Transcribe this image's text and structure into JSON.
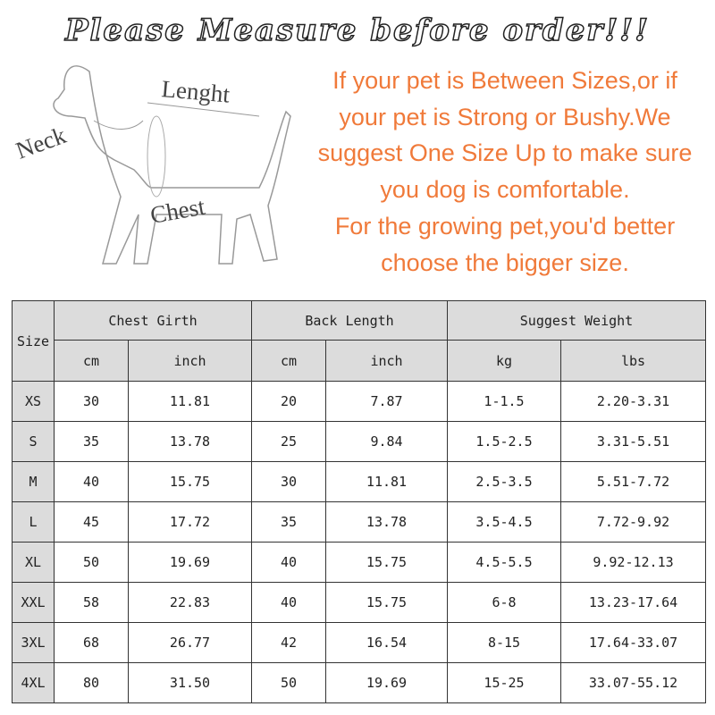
{
  "title": "Please Measure before order!!!",
  "diagram": {
    "length": "Lenght",
    "neck": "Neck",
    "chest": "Chest"
  },
  "advice": [
    "If your pet is Between Sizes,or if",
    "your pet is Strong or Bushy.We",
    "suggest One Size Up to make sure",
    "you dog is comfortable.",
    "For the growing pet,you'd better",
    "choose the bigger size."
  ],
  "colors": {
    "advice": "#f07a3a",
    "header_bg": "#dcdcdc"
  },
  "table": {
    "size_header": "Size",
    "groups": [
      "Chest Girth",
      "Back Length",
      "Suggest Weight"
    ],
    "units": [
      "cm",
      "inch",
      "cm",
      "inch",
      "kg",
      "lbs"
    ],
    "rows": [
      [
        "XS",
        "30",
        "11.81",
        "20",
        "7.87",
        "1-1.5",
        "2.20-3.31"
      ],
      [
        "S",
        "35",
        "13.78",
        "25",
        "9.84",
        "1.5-2.5",
        "3.31-5.51"
      ],
      [
        "M",
        "40",
        "15.75",
        "30",
        "11.81",
        "2.5-3.5",
        "5.51-7.72"
      ],
      [
        "L",
        "45",
        "17.72",
        "35",
        "13.78",
        "3.5-4.5",
        "7.72-9.92"
      ],
      [
        "XL",
        "50",
        "19.69",
        "40",
        "15.75",
        "4.5-5.5",
        "9.92-12.13"
      ],
      [
        "XXL",
        "58",
        "22.83",
        "40",
        "15.75",
        "6-8",
        "13.23-17.64"
      ],
      [
        "3XL",
        "68",
        "26.77",
        "42",
        "16.54",
        "8-15",
        "17.64-33.07"
      ],
      [
        "4XL",
        "80",
        "31.50",
        "50",
        "19.69",
        "15-25",
        "33.07-55.12"
      ]
    ]
  }
}
